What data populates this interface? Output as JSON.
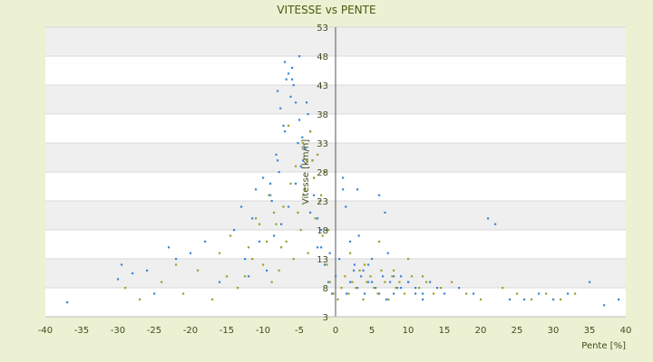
{
  "chart_data": {
    "type": "scatter",
    "title": "VITESSE vs PENTE",
    "xlabel": "Pente [%]",
    "ylabel": "Vitesse [km/h]",
    "xlim": [
      -40,
      40
    ],
    "ylim": [
      3,
      53
    ],
    "x_ticks": [
      -40,
      -35,
      -30,
      -25,
      -20,
      -15,
      -10,
      -5,
      0,
      5,
      10,
      15,
      20,
      25,
      30,
      35,
      40
    ],
    "y_ticks": [
      3,
      8,
      13,
      18,
      23,
      28,
      33,
      38,
      43,
      48,
      53
    ],
    "grid": true,
    "legend": "none",
    "colors": {
      "series_a": "#3a86d8",
      "series_b": "#9aa228",
      "background": "#ebf1d2",
      "band": "#efefef",
      "axis": "#555555"
    },
    "series": [
      {
        "color_key": "series_a",
        "x": [
          -37,
          -30,
          -29.5,
          -28,
          -26,
          -25,
          -23,
          -22,
          -20,
          -18,
          -16,
          -14,
          -13,
          -12.5,
          -12,
          -11.5,
          -11,
          -10.5,
          -10,
          -9.5,
          -9,
          -8.5,
          -8,
          -7.5,
          -7,
          -6.5,
          -6,
          -5.5,
          -5,
          -4.5,
          -4,
          -3.5,
          -3,
          -2.5,
          -2,
          -1.5,
          -1,
          -0.5,
          0,
          0.5,
          1,
          1.5,
          2,
          2.5,
          3,
          3.5,
          4,
          4.5,
          5,
          5.5,
          6,
          6.5,
          7,
          7.5,
          8,
          8.5,
          9,
          10,
          11,
          12,
          13,
          14,
          15,
          17,
          19,
          21,
          22,
          24,
          26,
          28,
          30,
          32,
          35,
          37,
          39,
          -7,
          -6.8,
          -6.5,
          -6,
          -5.8,
          -5.5,
          -5,
          -4.6,
          -4.2,
          -3.8,
          -3.5,
          -3.2,
          -8,
          -7.6,
          -7.2,
          -6.2,
          -5.2,
          -4.8,
          -9,
          -8.8,
          -8.2,
          -7.8,
          -3,
          -2.5,
          -2,
          -1.2,
          -0.8,
          1,
          1.4,
          2,
          2.6,
          3,
          3.2,
          3.8,
          4.5,
          5,
          6,
          6.8,
          7.2,
          8,
          9,
          10,
          11,
          12
        ],
        "y": [
          5.5,
          9.5,
          12,
          10.5,
          11,
          7,
          15,
          13,
          14,
          16,
          9,
          18,
          22,
          13,
          10,
          20,
          25,
          16,
          27,
          11,
          24,
          17,
          30,
          19,
          35,
          22,
          44,
          26,
          48,
          30,
          40,
          21,
          27,
          15,
          18,
          12,
          9,
          7,
          10,
          13,
          25,
          7,
          9,
          11,
          8,
          10,
          7,
          12,
          9,
          8,
          7,
          10,
          6,
          9,
          7,
          8,
          10,
          9,
          8,
          7,
          9,
          8,
          7,
          8,
          7,
          20,
          19,
          6,
          6,
          7,
          6,
          7,
          9,
          5,
          6,
          47,
          44,
          45,
          46,
          43,
          40,
          37,
          34,
          32,
          38,
          35,
          30,
          42,
          39,
          36,
          41,
          33,
          29,
          26,
          23,
          31,
          28,
          24,
          20,
          15,
          18,
          14,
          27,
          22,
          16,
          12,
          25,
          17,
          11,
          9,
          13,
          24,
          21,
          14,
          10,
          8,
          9,
          7,
          6
        ]
      },
      {
        "color_key": "series_b",
        "x": [
          -29,
          -27,
          -24,
          -22,
          -21,
          -19,
          -17,
          -16,
          -15,
          -14.5,
          -13.5,
          -12,
          -11,
          -10,
          -9.2,
          -8.8,
          -8.2,
          -7.8,
          -7.2,
          -6.8,
          -6.2,
          -5.8,
          -5.2,
          -4.8,
          -4.2,
          -3.8,
          -3.2,
          -2.8,
          -2.2,
          -1.8,
          -1.2,
          -0.8,
          -0.3,
          0.3,
          0.8,
          1.3,
          1.8,
          2.3,
          2.8,
          3.3,
          3.8,
          4.3,
          4.8,
          5.3,
          5.8,
          6.3,
          6.8,
          7.3,
          7.8,
          8.3,
          8.8,
          9.5,
          10.5,
          11.5,
          12.5,
          13.5,
          14.5,
          16,
          18,
          20,
          23,
          25,
          27,
          29,
          31,
          33,
          -3.5,
          -2.5,
          -1.5,
          -4.5,
          -5.5,
          -6.5,
          -2,
          -3,
          -4,
          -1,
          -10.5,
          -9.5,
          -8.5,
          -7.5,
          -12.5,
          -11.5,
          2,
          4,
          6,
          8,
          10,
          12
        ],
        "y": [
          8,
          6,
          9,
          12,
          7,
          11,
          6,
          14,
          10,
          17,
          8,
          15,
          20,
          12,
          24,
          9,
          19,
          11,
          22,
          16,
          26,
          13,
          21,
          18,
          25,
          14,
          30,
          20,
          23,
          17,
          12,
          9,
          7,
          6,
          8,
          10,
          7,
          9,
          8,
          11,
          6,
          9,
          10,
          8,
          7,
          11,
          9,
          6,
          10,
          8,
          9,
          7,
          10,
          8,
          9,
          7,
          8,
          9,
          7,
          6,
          8,
          7,
          6,
          7,
          6,
          7,
          35,
          31,
          28,
          33,
          29,
          36,
          24,
          27,
          30,
          18,
          19,
          16,
          21,
          15,
          10,
          13,
          14,
          12,
          16,
          11,
          13,
          10
        ]
      }
    ]
  }
}
